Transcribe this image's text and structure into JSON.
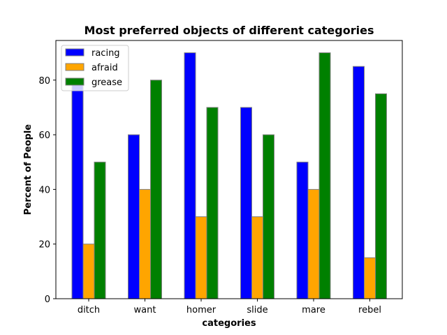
{
  "chart_data": {
    "type": "bar",
    "title": "Most preferred objects of different categories",
    "xlabel": "categories",
    "ylabel": "Percent of People",
    "categories": [
      "ditch",
      "want",
      "homer",
      "slide",
      "mare",
      "rebel"
    ],
    "series": [
      {
        "name": "racing",
        "color": "#0000ff",
        "values": [
          80,
          60,
          90,
          70,
          50,
          85
        ]
      },
      {
        "name": "afraid",
        "color": "#ffa500",
        "values": [
          20,
          40,
          30,
          30,
          40,
          15
        ]
      },
      {
        "name": "grease",
        "color": "#008000",
        "values": [
          50,
          80,
          70,
          60,
          90,
          75
        ]
      }
    ],
    "ylim": [
      0,
      94.5
    ],
    "yticks": [
      0,
      20,
      40,
      60,
      80
    ],
    "legend_position": "top-left",
    "grid": false
  }
}
